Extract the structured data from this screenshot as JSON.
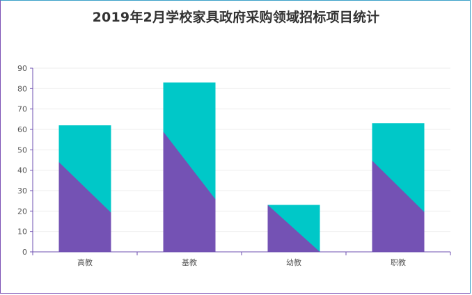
{
  "chart_data": {
    "type": "bar",
    "title": "2019年2月学校家具政府采购领域招标项目统计",
    "categories": [
      "高教",
      "基教",
      "幼教",
      "职教"
    ],
    "values": [
      62,
      83,
      23,
      63
    ],
    "ylim": [
      0,
      90
    ],
    "yticks": [
      0,
      10,
      20,
      30,
      40,
      50,
      60,
      70,
      80,
      90
    ],
    "xlabel": "",
    "ylabel": "",
    "grid": true,
    "colors": {
      "bar_top": "#00c8c8",
      "bar_bottom": "#7452b4",
      "axis": "#6e4fb0",
      "grid": "#eeeeee"
    }
  }
}
